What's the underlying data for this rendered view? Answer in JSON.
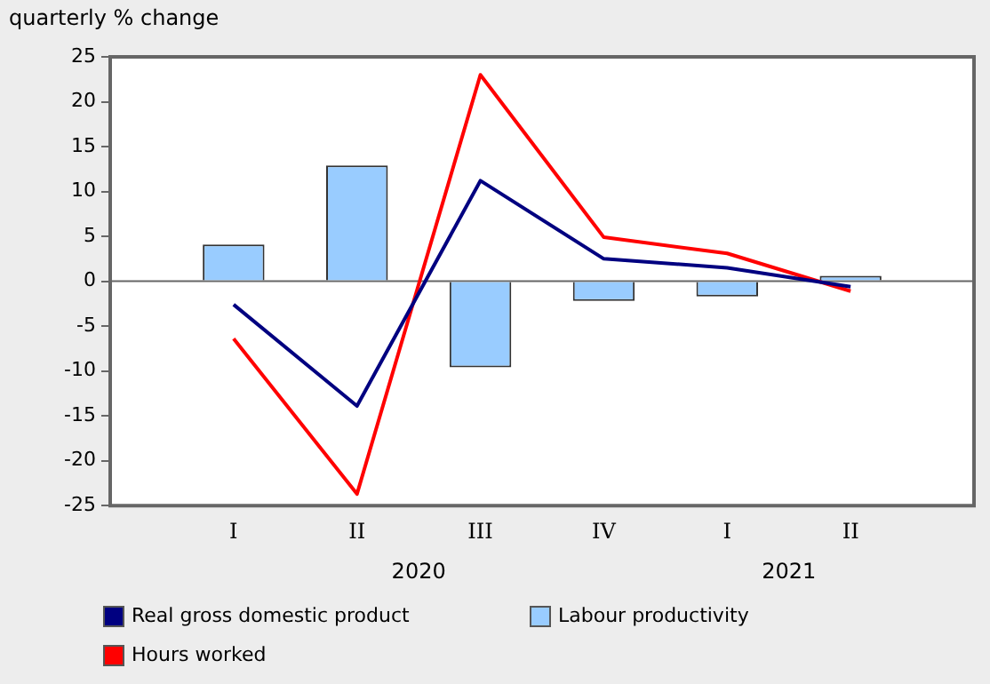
{
  "chart_data": {
    "type": "bar",
    "ylabel": "quarterly % change",
    "categories": [
      null,
      "I",
      "II",
      "III",
      "IV",
      "I",
      "II",
      null
    ],
    "annotations": [
      "2020",
      "2021"
    ],
    "series": [
      {
        "name": "Real gross domestic product",
        "type": "line",
        "color": "#000080",
        "values": [
          null,
          -2.6,
          -13.9,
          11.2,
          2.5,
          1.5,
          -0.6,
          null
        ]
      },
      {
        "name": "Labour productivity",
        "color": "#99ccff",
        "values": [
          null,
          4.1,
          12.9,
          -9.6,
          -2.2,
          -1.7,
          0.6,
          null
        ]
      },
      {
        "name": "Hours worked",
        "type": "line",
        "color": "#ff0000",
        "values": [
          null,
          -6.4,
          -23.7,
          23.0,
          4.9,
          3.1,
          -1.1,
          null
        ]
      }
    ],
    "ylim": [
      -25,
      25
    ],
    "yticks": [
      -25,
      -20,
      -15,
      -10,
      -5,
      0,
      5,
      10,
      15,
      20,
      25
    ],
    "ref_lines": [
      {
        "axis": "y",
        "value": 0,
        "color": "#666666"
      }
    ],
    "grid": false,
    "legend": "bottom"
  }
}
